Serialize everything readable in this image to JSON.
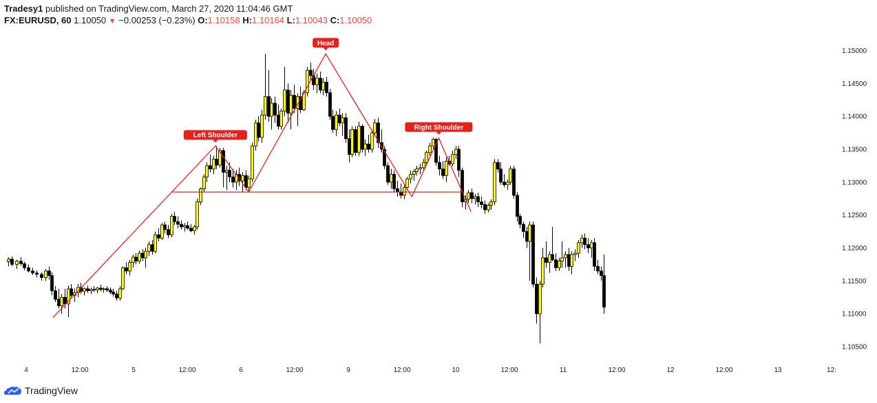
{
  "header": {
    "user": "Tradesy1",
    "published": "published on TradingView.com, March 27, 2020 11:04:46 GMT",
    "symbol": "FX:EURUSD, 60",
    "last": "1.10050",
    "change": "−0.00253 (−0.23%)",
    "o_key": "O:",
    "o_val": "1.10158",
    "h_key": "H:",
    "h_val": "1.10164",
    "l_key": "L:",
    "l_val": "1.10043",
    "c_key": "C:",
    "c_val": "1.10050"
  },
  "footer": {
    "brand": "TradingView"
  },
  "colors": {
    "up_body": "#ffff00",
    "down_body": "#000000",
    "pattern_line": "#e8201a",
    "label_bg": "#e8201a"
  },
  "chart_data": {
    "type": "candlestick",
    "symbol": "FX:EURUSD",
    "interval": "60",
    "y_ticks": [
      "1.10500",
      "1.11000",
      "1.11500",
      "1.12000",
      "1.12500",
      "1.13000",
      "1.13500",
      "1.14000",
      "1.14500",
      "1.15000"
    ],
    "y_range": [
      1.1025,
      1.1535
    ],
    "x_ticks": [
      "4",
      "12:00",
      "5",
      "12:00",
      "6",
      "12:00",
      "9",
      "12:00",
      "10",
      "12:00",
      "11",
      "12:00",
      "12",
      "12:00",
      "13",
      "12:"
    ],
    "x_range": [
      0,
      15.4
    ],
    "annotations": [
      {
        "label": "Left Shoulder",
        "x": 3.9,
        "y": 1.1355
      },
      {
        "label": "Head",
        "x": 5.95,
        "y": 1.1495
      },
      {
        "label": "Right Shoulder",
        "x": 8.05,
        "y": 1.1367
      }
    ],
    "pattern_line": [
      [
        0.88,
        1.1094
      ],
      [
        3.9,
        1.1355
      ],
      [
        4.52,
        1.1285
      ],
      [
        5.95,
        1.1495
      ],
      [
        7.55,
        1.1278
      ],
      [
        8.05,
        1.1367
      ],
      [
        8.65,
        1.1255
      ]
    ],
    "neckline": {
      "x": [
        3.1,
        8.45
      ],
      "y": 1.1285
    },
    "candles": [
      [
        0.05,
        1.1179,
        1.1186,
        1.1172,
        1.1183
      ],
      [
        0.12,
        1.1183,
        1.1187,
        1.1172,
        1.1175
      ],
      [
        0.2,
        1.1175,
        1.1182,
        1.1168,
        1.118
      ],
      [
        0.28,
        1.118,
        1.1186,
        1.1173,
        1.1176
      ],
      [
        0.35,
        1.1176,
        1.1179,
        1.1166,
        1.117
      ],
      [
        0.42,
        1.117,
        1.1175,
        1.1163,
        1.1165
      ],
      [
        0.5,
        1.1165,
        1.117,
        1.1159,
        1.1162
      ],
      [
        0.58,
        1.1162,
        1.1166,
        1.1155,
        1.116
      ],
      [
        0.66,
        1.116,
        1.1163,
        1.115,
        1.1155
      ],
      [
        0.74,
        1.1155,
        1.1168,
        1.115,
        1.1165
      ],
      [
        0.8,
        1.1165,
        1.1172,
        1.1152,
        1.1158
      ],
      [
        0.86,
        1.1158,
        1.1163,
        1.1128,
        1.1135
      ],
      [
        0.92,
        1.1135,
        1.1142,
        1.1118,
        1.1122
      ],
      [
        0.98,
        1.1122,
        1.1138,
        1.1108,
        1.1112
      ],
      [
        1.04,
        1.1112,
        1.113,
        1.11,
        1.1125
      ],
      [
        1.1,
        1.1125,
        1.1138,
        1.1108,
        1.1115
      ],
      [
        1.16,
        1.1115,
        1.1143,
        1.1095,
        1.1138
      ],
      [
        1.22,
        1.1138,
        1.1145,
        1.1125,
        1.1128
      ],
      [
        1.28,
        1.1128,
        1.1138,
        1.1118,
        1.1132
      ],
      [
        1.34,
        1.1132,
        1.1145,
        1.1125,
        1.114
      ],
      [
        1.4,
        1.114,
        1.1147,
        1.113,
        1.1134
      ],
      [
        1.46,
        1.1134,
        1.114,
        1.1128,
        1.1138
      ],
      [
        1.52,
        1.1138,
        1.1143,
        1.1132,
        1.1135
      ],
      [
        1.58,
        1.1135,
        1.114,
        1.113,
        1.1137
      ],
      [
        1.64,
        1.1137,
        1.1142,
        1.1133,
        1.1136
      ],
      [
        1.7,
        1.1136,
        1.1141,
        1.1131,
        1.1139
      ],
      [
        1.76,
        1.1139,
        1.1144,
        1.1134,
        1.1137
      ],
      [
        1.82,
        1.1137,
        1.114,
        1.1132,
        1.1138
      ],
      [
        1.88,
        1.1138,
        1.1142,
        1.1133,
        1.1136
      ],
      [
        1.94,
        1.1136,
        1.114,
        1.113,
        1.1133
      ],
      [
        2.0,
        1.1133,
        1.1138,
        1.1126,
        1.113
      ],
      [
        2.06,
        1.113,
        1.1135,
        1.112,
        1.1124
      ],
      [
        2.12,
        1.1124,
        1.1142,
        1.112,
        1.1138
      ],
      [
        2.18,
        1.1138,
        1.1172,
        1.1136,
        1.117
      ],
      [
        2.24,
        1.117,
        1.1178,
        1.116,
        1.1165
      ],
      [
        2.3,
        1.1165,
        1.1182,
        1.1158,
        1.1178
      ],
      [
        2.36,
        1.1178,
        1.119,
        1.117,
        1.1186
      ],
      [
        2.42,
        1.1186,
        1.1192,
        1.1175,
        1.118
      ],
      [
        2.48,
        1.118,
        1.1196,
        1.1176,
        1.1192
      ],
      [
        2.54,
        1.1192,
        1.1198,
        1.118,
        1.1185
      ],
      [
        2.6,
        1.1185,
        1.12,
        1.117,
        1.1195
      ],
      [
        2.66,
        1.1195,
        1.121,
        1.1188,
        1.1205
      ],
      [
        2.72,
        1.1205,
        1.1212,
        1.119,
        1.1195
      ],
      [
        2.78,
        1.1195,
        1.1225,
        1.1192,
        1.122
      ],
      [
        2.84,
        1.122,
        1.123,
        1.121,
        1.1215
      ],
      [
        2.9,
        1.1215,
        1.1238,
        1.1212,
        1.1235
      ],
      [
        2.96,
        1.1235,
        1.124,
        1.1222,
        1.1228
      ],
      [
        3.02,
        1.1228,
        1.1235,
        1.1215,
        1.122
      ],
      [
        3.08,
        1.122,
        1.1252,
        1.1216,
        1.1248
      ],
      [
        3.14,
        1.1248,
        1.1255,
        1.1235,
        1.124
      ],
      [
        3.2,
        1.124,
        1.1248,
        1.123,
        1.1236
      ],
      [
        3.26,
        1.1236,
        1.1242,
        1.1228,
        1.1232
      ],
      [
        3.32,
        1.1232,
        1.1238,
        1.1225,
        1.1234
      ],
      [
        3.38,
        1.1234,
        1.124,
        1.1228,
        1.123
      ],
      [
        3.44,
        1.123,
        1.1236,
        1.1224,
        1.1226
      ],
      [
        3.5,
        1.1226,
        1.1235,
        1.122,
        1.1232
      ],
      [
        3.56,
        1.1232,
        1.1275,
        1.1228,
        1.127
      ],
      [
        3.62,
        1.127,
        1.1292,
        1.1265,
        1.129
      ],
      [
        3.68,
        1.129,
        1.1312,
        1.1285,
        1.1308
      ],
      [
        3.74,
        1.1308,
        1.133,
        1.13,
        1.1325
      ],
      [
        3.8,
        1.1325,
        1.1342,
        1.1315,
        1.132
      ],
      [
        3.86,
        1.132,
        1.134,
        1.1312,
        1.1335
      ],
      [
        3.92,
        1.1335,
        1.1355,
        1.132,
        1.1326
      ],
      [
        3.98,
        1.1326,
        1.1352,
        1.1322,
        1.1348
      ],
      [
        4.04,
        1.1348,
        1.1352,
        1.1292,
        1.1315
      ],
      [
        4.1,
        1.1315,
        1.1325,
        1.1288,
        1.1318
      ],
      [
        4.16,
        1.1318,
        1.133,
        1.13,
        1.1308
      ],
      [
        4.22,
        1.1308,
        1.132,
        1.1292,
        1.13
      ],
      [
        4.28,
        1.13,
        1.1318,
        1.1288,
        1.1312
      ],
      [
        4.34,
        1.1312,
        1.1322,
        1.1294,
        1.1302
      ],
      [
        4.4,
        1.1302,
        1.1315,
        1.1285,
        1.131
      ],
      [
        4.46,
        1.131,
        1.1318,
        1.1288,
        1.1292
      ],
      [
        4.52,
        1.1292,
        1.131,
        1.1285,
        1.1305
      ],
      [
        4.58,
        1.1305,
        1.136,
        1.13,
        1.1355
      ],
      [
        4.64,
        1.1355,
        1.1395,
        1.1348,
        1.139
      ],
      [
        4.7,
        1.139,
        1.14,
        1.1362,
        1.1368
      ],
      [
        4.76,
        1.1368,
        1.141,
        1.136,
        1.1402
      ],
      [
        4.82,
        1.1402,
        1.1495,
        1.1395,
        1.143
      ],
      [
        4.88,
        1.143,
        1.147,
        1.1392,
        1.14
      ],
      [
        4.94,
        1.14,
        1.1428,
        1.138,
        1.142
      ],
      [
        5.0,
        1.142,
        1.143,
        1.139,
        1.1402
      ],
      [
        5.06,
        1.1402,
        1.1418,
        1.138,
        1.1385
      ],
      [
        5.12,
        1.1385,
        1.1412,
        1.138,
        1.1408
      ],
      [
        5.18,
        1.1408,
        1.1475,
        1.14,
        1.144
      ],
      [
        5.24,
        1.144,
        1.145,
        1.139,
        1.1405
      ],
      [
        5.3,
        1.1405,
        1.144,
        1.138,
        1.1432
      ],
      [
        5.36,
        1.1432,
        1.1448,
        1.1405,
        1.1412
      ],
      [
        5.42,
        1.1412,
        1.1435,
        1.1385,
        1.143
      ],
      [
        5.48,
        1.143,
        1.1445,
        1.1405,
        1.141
      ],
      [
        5.54,
        1.141,
        1.144,
        1.1408,
        1.1436
      ],
      [
        5.6,
        1.1436,
        1.1475,
        1.143,
        1.147
      ],
      [
        5.66,
        1.147,
        1.1482,
        1.1455,
        1.1462
      ],
      [
        5.72,
        1.1462,
        1.1472,
        1.144,
        1.1448
      ],
      [
        5.78,
        1.1448,
        1.1465,
        1.1435,
        1.1458
      ],
      [
        5.84,
        1.1458,
        1.1468,
        1.1435,
        1.144
      ],
      [
        5.9,
        1.144,
        1.1458,
        1.1432,
        1.1452
      ],
      [
        5.96,
        1.1452,
        1.146,
        1.143,
        1.1436
      ],
      [
        6.02,
        1.1436,
        1.1442,
        1.1395,
        1.14
      ],
      [
        6.08,
        1.14,
        1.141,
        1.1375,
        1.138
      ],
      [
        6.14,
        1.138,
        1.1408,
        1.137,
        1.1402
      ],
      [
        6.2,
        1.1402,
        1.1412,
        1.1385,
        1.139
      ],
      [
        6.26,
        1.139,
        1.1405,
        1.137,
        1.1398
      ],
      [
        6.32,
        1.1398,
        1.1405,
        1.136,
        1.1366
      ],
      [
        6.38,
        1.1366,
        1.138,
        1.133,
        1.1342
      ],
      [
        6.44,
        1.1342,
        1.1385,
        1.1338,
        1.138
      ],
      [
        6.5,
        1.138,
        1.1385,
        1.134,
        1.1345
      ],
      [
        6.56,
        1.1345,
        1.1392,
        1.134,
        1.1385
      ],
      [
        6.62,
        1.1385,
        1.1388,
        1.1345,
        1.135
      ],
      [
        6.68,
        1.135,
        1.1365,
        1.134,
        1.1358
      ],
      [
        6.74,
        1.1358,
        1.1372,
        1.1345,
        1.135
      ],
      [
        6.8,
        1.135,
        1.138,
        1.1345,
        1.1375
      ],
      [
        6.86,
        1.1375,
        1.1396,
        1.137,
        1.139
      ],
      [
        6.92,
        1.139,
        1.1398,
        1.1352,
        1.136
      ],
      [
        6.98,
        1.136,
        1.138,
        1.1345,
        1.135
      ],
      [
        7.04,
        1.135,
        1.1355,
        1.132,
        1.1325
      ],
      [
        7.1,
        1.1325,
        1.133,
        1.1296,
        1.13
      ],
      [
        7.16,
        1.13,
        1.132,
        1.129,
        1.1312
      ],
      [
        7.22,
        1.1312,
        1.1318,
        1.1285,
        1.129
      ],
      [
        7.28,
        1.129,
        1.1302,
        1.1278,
        1.1285
      ],
      [
        7.34,
        1.1285,
        1.1298,
        1.1275,
        1.128
      ],
      [
        7.4,
        1.128,
        1.1295,
        1.1274,
        1.1292
      ],
      [
        7.46,
        1.1292,
        1.1308,
        1.1288,
        1.1305
      ],
      [
        7.52,
        1.1305,
        1.1318,
        1.1298,
        1.1312
      ],
      [
        7.58,
        1.1312,
        1.132,
        1.1302,
        1.1316
      ],
      [
        7.64,
        1.1316,
        1.1325,
        1.131,
        1.132
      ],
      [
        7.7,
        1.132,
        1.1328,
        1.1312,
        1.1322
      ],
      [
        7.76,
        1.1322,
        1.1335,
        1.1316,
        1.133
      ],
      [
        7.82,
        1.133,
        1.1348,
        1.1325,
        1.1345
      ],
      [
        7.88,
        1.1345,
        1.136,
        1.134,
        1.1355
      ],
      [
        7.94,
        1.1355,
        1.1368,
        1.135,
        1.1365
      ],
      [
        8.0,
        1.1365,
        1.1367,
        1.1325,
        1.133
      ],
      [
        8.06,
        1.133,
        1.134,
        1.131,
        1.132
      ],
      [
        8.12,
        1.132,
        1.1332,
        1.1305,
        1.131
      ],
      [
        8.18,
        1.131,
        1.1338,
        1.13,
        1.1332
      ],
      [
        8.24,
        1.1332,
        1.134,
        1.1325,
        1.1328
      ],
      [
        8.3,
        1.1328,
        1.1348,
        1.1324,
        1.1342
      ],
      [
        8.36,
        1.1342,
        1.1355,
        1.1335,
        1.135
      ],
      [
        8.42,
        1.135,
        1.1355,
        1.1308,
        1.1318
      ],
      [
        8.48,
        1.1318,
        1.1322,
        1.1262,
        1.127
      ],
      [
        8.54,
        1.127,
        1.128,
        1.1258,
        1.1274
      ],
      [
        8.6,
        1.1274,
        1.1288,
        1.1268,
        1.1284
      ],
      [
        8.66,
        1.1284,
        1.129,
        1.1268,
        1.1275
      ],
      [
        8.72,
        1.1275,
        1.1282,
        1.1266,
        1.1278
      ],
      [
        8.78,
        1.1278,
        1.1284,
        1.1262,
        1.127
      ],
      [
        8.84,
        1.127,
        1.1278,
        1.126,
        1.1266
      ],
      [
        8.9,
        1.1266,
        1.1272,
        1.1252,
        1.1258
      ],
      [
        8.96,
        1.1258,
        1.1268,
        1.1254,
        1.1265
      ],
      [
        9.02,
        1.1265,
        1.1274,
        1.1258,
        1.127
      ],
      [
        9.08,
        1.127,
        1.1335,
        1.1265,
        1.133
      ],
      [
        9.14,
        1.133,
        1.1335,
        1.1315,
        1.132
      ],
      [
        9.2,
        1.132,
        1.133,
        1.1296,
        1.13
      ],
      [
        9.26,
        1.13,
        1.1312,
        1.1292,
        1.1296
      ],
      [
        9.32,
        1.1296,
        1.1304,
        1.1288,
        1.13
      ],
      [
        9.38,
        1.13,
        1.1325,
        1.1296,
        1.132
      ],
      [
        9.44,
        1.132,
        1.1325,
        1.1275,
        1.128
      ],
      [
        9.5,
        1.128,
        1.1285,
        1.124,
        1.1248
      ],
      [
        9.56,
        1.1248,
        1.1252,
        1.123,
        1.1236
      ],
      [
        9.62,
        1.1236,
        1.124,
        1.1215,
        1.1225
      ],
      [
        9.68,
        1.1225,
        1.1232,
        1.12,
        1.121
      ],
      [
        9.74,
        1.121,
        1.124,
        1.115,
        1.1235
      ],
      [
        9.8,
        1.1235,
        1.124,
        1.114,
        1.1145
      ],
      [
        9.86,
        1.1145,
        1.1155,
        1.1085,
        1.11
      ],
      [
        9.92,
        1.11,
        1.115,
        1.1055,
        1.1145
      ],
      [
        9.98,
        1.1145,
        1.12,
        1.114,
        1.1185
      ],
      [
        10.04,
        1.1185,
        1.121,
        1.117,
        1.1178
      ],
      [
        10.1,
        1.1178,
        1.1195,
        1.1162,
        1.119
      ],
      [
        10.16,
        1.119,
        1.1232,
        1.118,
        1.1182
      ],
      [
        10.22,
        1.1182,
        1.1192,
        1.1165,
        1.117
      ],
      [
        10.28,
        1.117,
        1.1185,
        1.1165,
        1.118
      ],
      [
        10.34,
        1.118,
        1.121,
        1.117,
        1.1185
      ],
      [
        10.4,
        1.1185,
        1.1195,
        1.117,
        1.119
      ],
      [
        10.46,
        1.119,
        1.12,
        1.1165,
        1.1172
      ],
      [
        10.52,
        1.1172,
        1.1195,
        1.116,
        1.119
      ],
      [
        10.58,
        1.119,
        1.1198,
        1.118,
        1.1192
      ],
      [
        10.64,
        1.1192,
        1.1212,
        1.1185,
        1.1208
      ],
      [
        10.7,
        1.1208,
        1.122,
        1.12,
        1.1215
      ],
      [
        10.76,
        1.1215,
        1.1222,
        1.1198,
        1.1205
      ],
      [
        10.82,
        1.1205,
        1.1215,
        1.1192,
        1.12
      ],
      [
        10.88,
        1.12,
        1.1212,
        1.1185,
        1.1208
      ],
      [
        10.94,
        1.1208,
        1.1215,
        1.1165,
        1.1172
      ],
      [
        11.0,
        1.1172,
        1.1182,
        1.116,
        1.1165
      ],
      [
        11.06,
        1.1165,
        1.1172,
        1.115,
        1.1158
      ],
      [
        11.12,
        1.1158,
        1.119,
        1.11,
        1.111
      ]
    ]
  }
}
